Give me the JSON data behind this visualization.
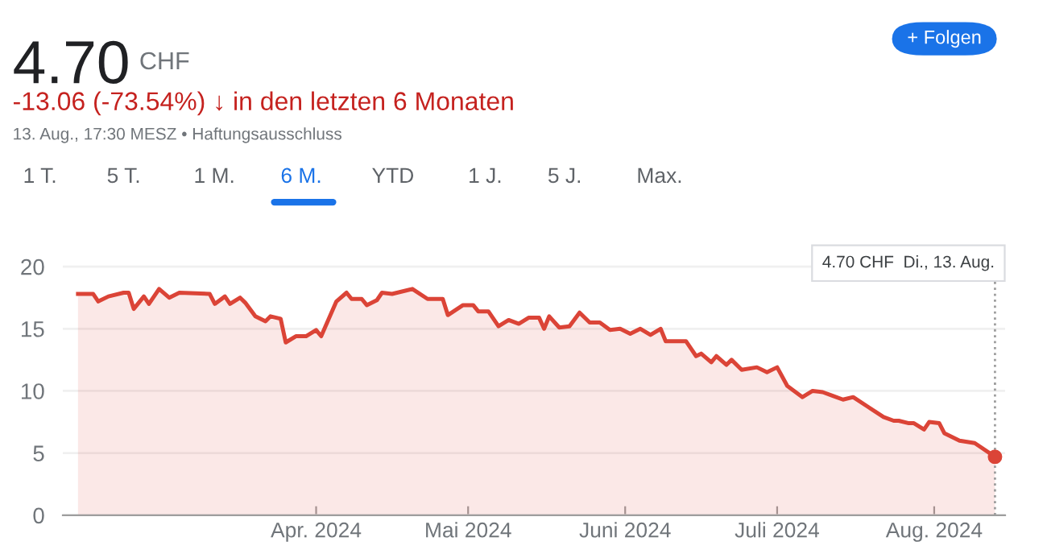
{
  "chart_data": {
    "type": "area",
    "title": "4.70",
    "subtitle": "-13.06 (-73.54%) ↓ in den letzten 6 Monaten",
    "annotations": [
      "CHF",
      "13. Aug., 17:30 MESZ • Haftungsausschluss",
      "1 T.",
      "5 T.",
      "1 M.",
      "6 M.",
      "YTD",
      "1 J.",
      "5 J.",
      "Max.",
      "+ Folgen",
      "4.70 CHF  Di., 13. Aug."
    ],
    "x": [
      "2024-02-14",
      "2024-02-17",
      "2024-02-18",
      "2024-02-20",
      "2024-02-23",
      "2024-02-24",
      "2024-02-25",
      "2024-02-27",
      "2024-02-28",
      "2024-03-01",
      "2024-03-03",
      "2024-03-05",
      "2024-03-11",
      "2024-03-12",
      "2024-03-14",
      "2024-03-15",
      "2024-03-17",
      "2024-03-18",
      "2024-03-20",
      "2024-03-22",
      "2024-03-23",
      "2024-03-25",
      "2024-03-26",
      "2024-03-28",
      "2024-03-30",
      "2024-04-01",
      "2024-04-02",
      "2024-04-05",
      "2024-04-07",
      "2024-04-08",
      "2024-04-10",
      "2024-04-11",
      "2024-04-13",
      "2024-04-14",
      "2024-04-16",
      "2024-04-20",
      "2024-04-23",
      "2024-04-26",
      "2024-04-27",
      "2024-04-30",
      "2024-05-02",
      "2024-05-03",
      "2024-05-05",
      "2024-05-07",
      "2024-05-09",
      "2024-05-11",
      "2024-05-13",
      "2024-05-15",
      "2024-05-16",
      "2024-05-17",
      "2024-05-19",
      "2024-05-21",
      "2024-05-23",
      "2024-05-25",
      "2024-05-27",
      "2024-05-29",
      "2024-05-31",
      "2024-06-02",
      "2024-06-04",
      "2024-06-06",
      "2024-06-08",
      "2024-06-09",
      "2024-06-13",
      "2024-06-15",
      "2024-06-16",
      "2024-06-18",
      "2024-06-19",
      "2024-06-21",
      "2024-06-22",
      "2024-06-24",
      "2024-06-27",
      "2024-06-29",
      "2024-07-01",
      "2024-07-03",
      "2024-07-06",
      "2024-07-08",
      "2024-07-10",
      "2024-07-12",
      "2024-07-14",
      "2024-07-16",
      "2024-07-19",
      "2024-07-22",
      "2024-07-24",
      "2024-07-25",
      "2024-07-27",
      "2024-07-28",
      "2024-07-30",
      "2024-07-31",
      "2024-08-02",
      "2024-08-03",
      "2024-08-06",
      "2024-08-09",
      "2024-08-13"
    ],
    "series": [
      {
        "color": "#db4437",
        "values": [
          17.8,
          17.8,
          17.2,
          17.6,
          17.9,
          17.9,
          16.6,
          17.6,
          17.0,
          18.2,
          17.5,
          17.9,
          17.8,
          17.0,
          17.6,
          17.0,
          17.5,
          17.1,
          16.0,
          15.6,
          16.0,
          15.8,
          13.9,
          14.4,
          14.4,
          14.9,
          14.4,
          17.2,
          17.9,
          17.4,
          17.4,
          16.9,
          17.3,
          17.9,
          17.8,
          18.2,
          17.4,
          17.4,
          16.1,
          16.9,
          16.9,
          16.4,
          16.4,
          15.2,
          15.7,
          15.4,
          15.9,
          15.9,
          15.0,
          16.0,
          15.1,
          15.2,
          16.3,
          15.5,
          15.5,
          14.9,
          15.0,
          14.6,
          15.0,
          14.5,
          15.0,
          14.0,
          14.0,
          12.8,
          13.0,
          12.3,
          12.8,
          12.1,
          12.5,
          11.7,
          11.9,
          11.5,
          11.9,
          10.4,
          9.5,
          10.0,
          9.9,
          9.6,
          9.3,
          9.5,
          8.7,
          7.9,
          7.6,
          7.6,
          7.4,
          7.4,
          6.9,
          7.5,
          7.4,
          6.6,
          6.0,
          5.8,
          4.7
        ]
      },
      {
        "type": "scatter",
        "color": "#db4437",
        "x": [
          "2024-08-13"
        ],
        "values": [
          4.7
        ]
      }
    ],
    "xlim": [
      "2024-02-11",
      "2024-08-15"
    ],
    "xticks": [
      {
        "value": "2024-04-01",
        "label": "Apr. 2024"
      },
      {
        "value": "2024-05-01",
        "label": "Mai 2024"
      },
      {
        "value": "2024-06-01",
        "label": "Juni 2024"
      },
      {
        "value": "2024-07-01",
        "label": "Juli 2024"
      },
      {
        "value": "2024-08-01",
        "label": "Aug. 2024"
      }
    ],
    "ylim": [
      0,
      20.5
    ],
    "yticks": [
      0,
      5,
      10,
      15,
      20
    ],
    "grid": "y",
    "ref_lines": [
      {
        "axis": "x",
        "value": "2024-08-13",
        "color": "#9e9e9e",
        "line_style": "dotted"
      }
    ]
  }
}
